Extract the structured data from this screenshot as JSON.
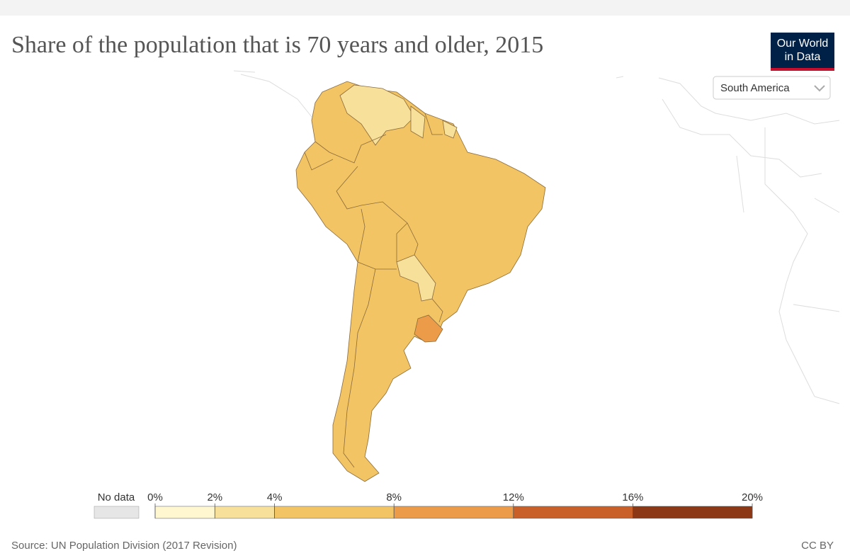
{
  "header": {
    "title": "Share of the population that is 70 years and older, 2015",
    "logo": [
      "Our World",
      "in Data"
    ]
  },
  "controls": {
    "region": "South America"
  },
  "legend": {
    "no_data_label": "No data",
    "no_data_color": "#e6e6e6",
    "ticks": [
      {
        "value": 0,
        "label": "0%"
      },
      {
        "value": 2,
        "label": "2%"
      },
      {
        "value": 4,
        "label": "4%"
      },
      {
        "value": 8,
        "label": "8%"
      },
      {
        "value": 12,
        "label": "12%"
      },
      {
        "value": 16,
        "label": "16%"
      },
      {
        "value": 20,
        "label": "20%"
      }
    ],
    "colors": [
      "#fef7cf",
      "#f7e09a",
      "#f2c464",
      "#ec9b48",
      "#c9602a",
      "#8c3716"
    ]
  },
  "footer": {
    "source": "Source: UN Population Division (2017 Revision)",
    "license": "CC BY"
  }
}
